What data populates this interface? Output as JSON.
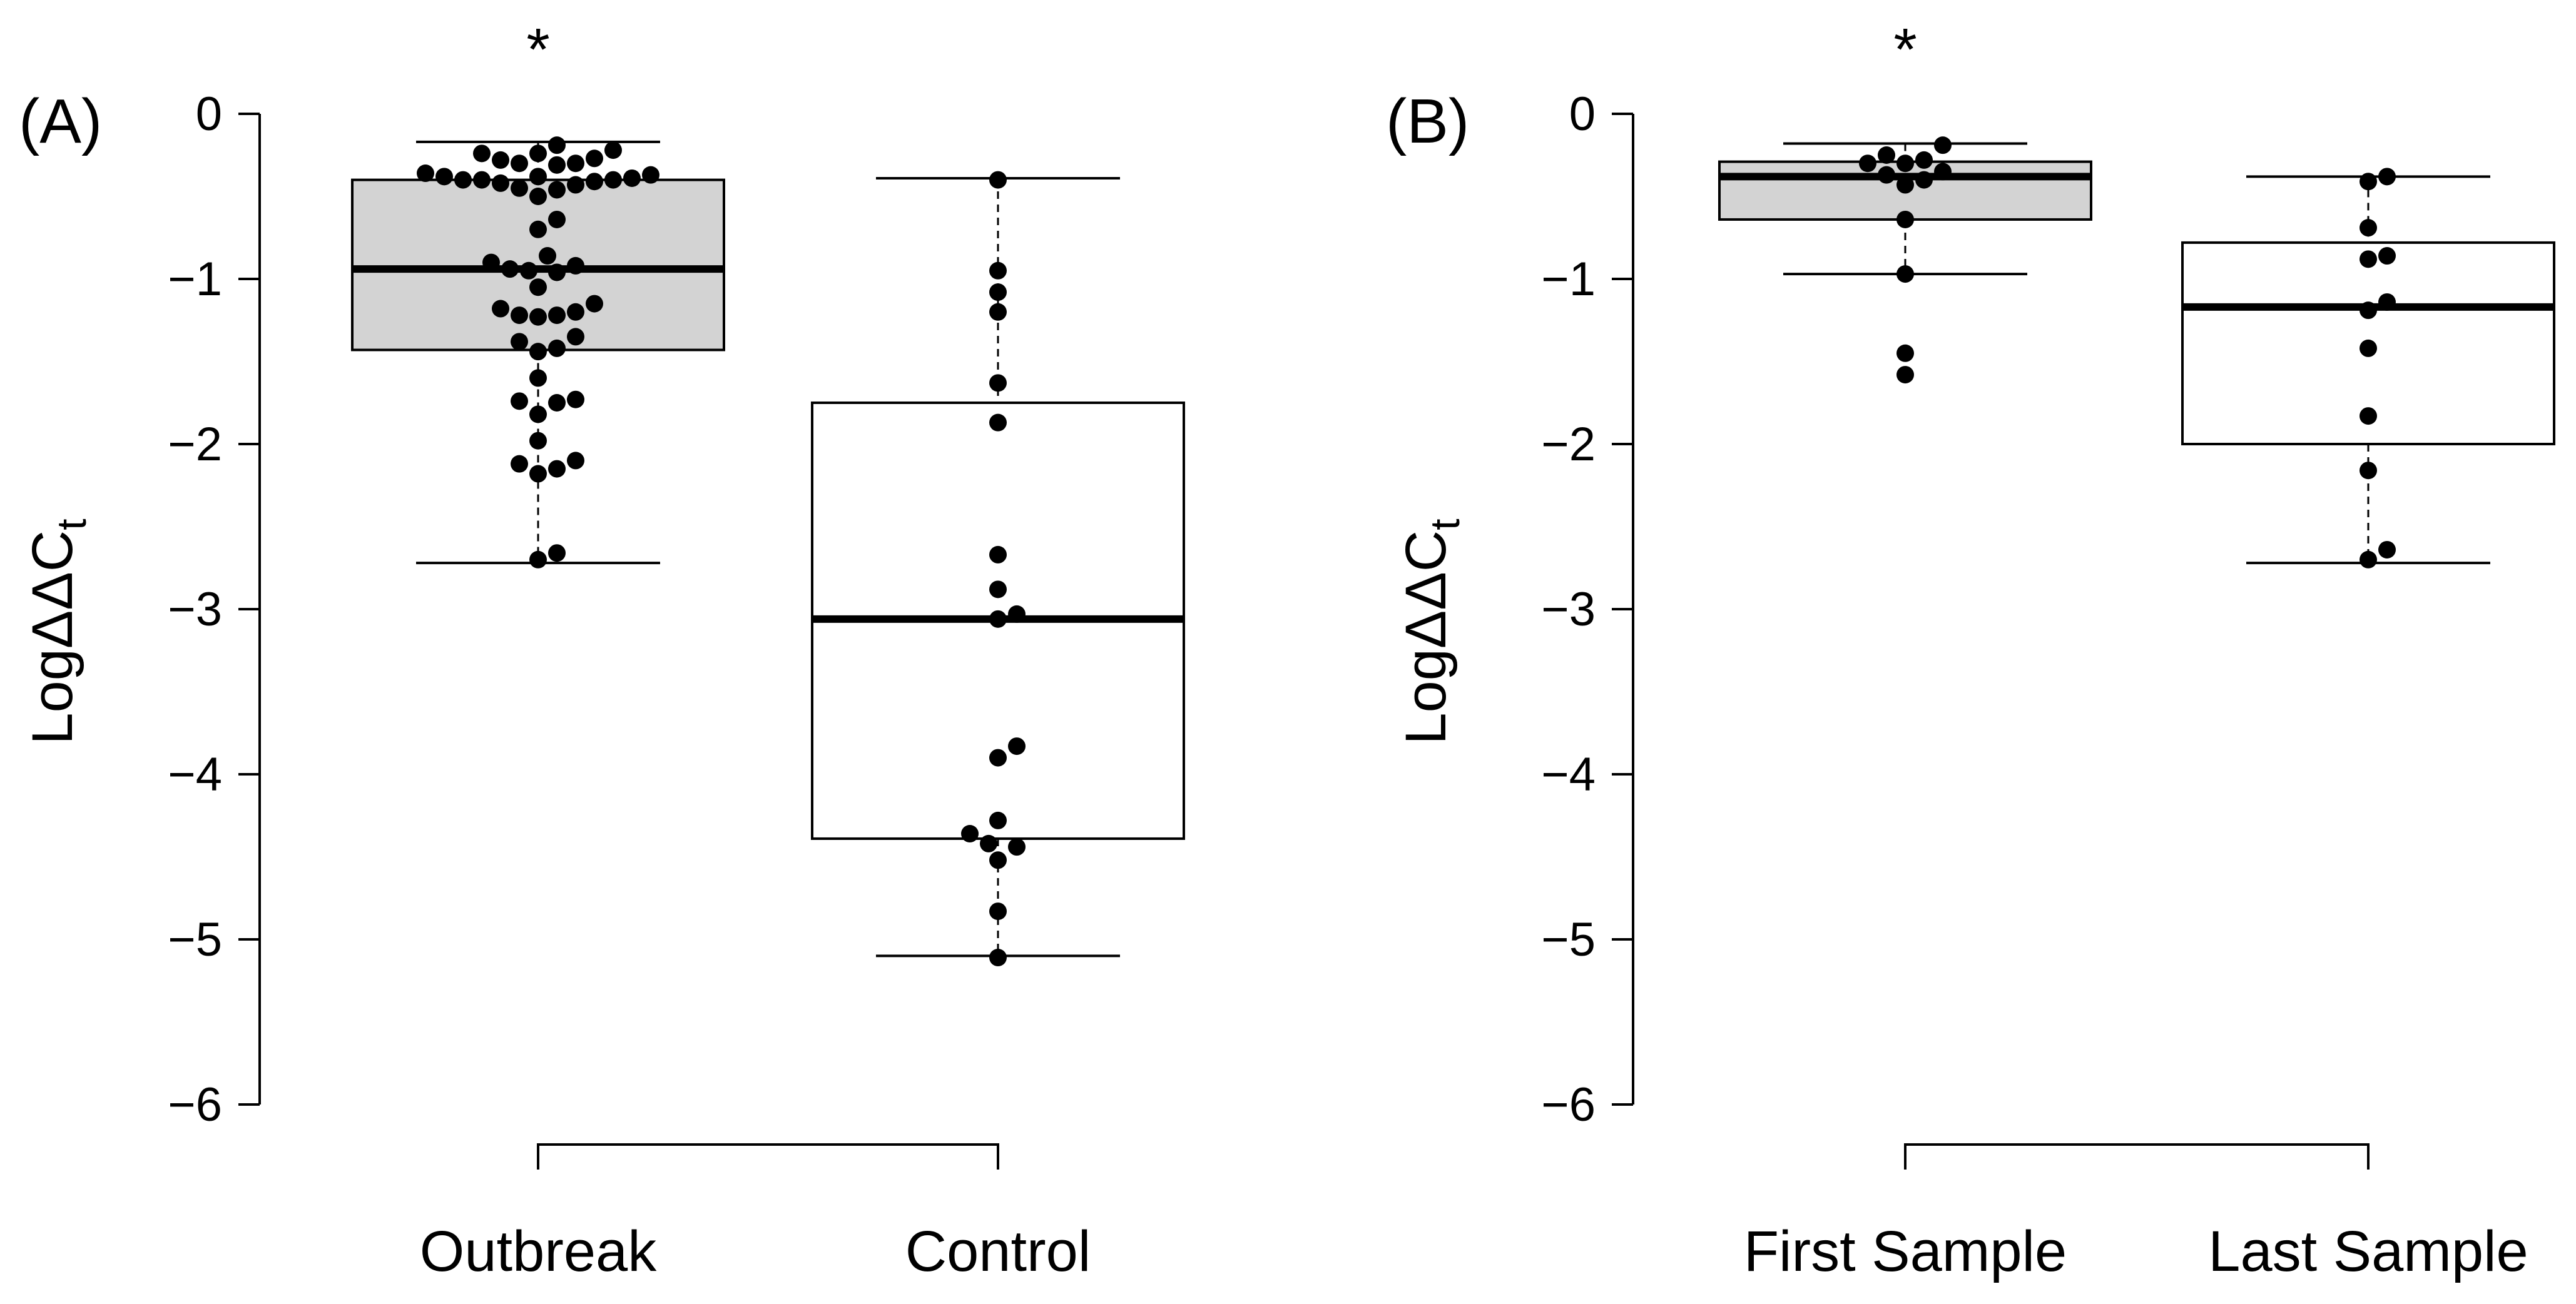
{
  "chart_data": [
    {
      "type": "box",
      "panel_label": "(A)",
      "ylabel": "LogΔΔCt",
      "ylabel_main": "LogΔΔC",
      "ylabel_sub": "t",
      "ylim": [
        -6,
        0
      ],
      "yticks": [
        0,
        -1,
        -2,
        -3,
        -4,
        -5,
        -6
      ],
      "ytick_labels": [
        "0",
        "−1",
        "−2",
        "−3",
        "−4",
        "−5",
        "−6"
      ],
      "categories": [
        "Outbreak",
        "Control"
      ],
      "significance": [
        "*",
        ""
      ],
      "box_colors": [
        "#d3d3d3",
        "#ffffff"
      ],
      "boxes": [
        {
          "category": "Outbreak",
          "whisker_high": -0.17,
          "q3": -0.4,
          "median": -0.94,
          "q1": -1.43,
          "whisker_low": -2.72
        },
        {
          "category": "Control",
          "whisker_high": -0.39,
          "q3": -1.75,
          "median": -3.06,
          "q1": -4.39,
          "whisker_low": -5.1
        }
      ],
      "points": [
        [
          -0.19,
          -0.22,
          -0.24,
          -0.24,
          -0.27,
          -0.28,
          -0.3,
          -0.3,
          -0.31,
          -0.36,
          -0.37,
          -0.38,
          -0.38,
          -0.39,
          -0.4,
          -0.4,
          -0.4,
          -0.41,
          -0.42,
          -0.43,
          -0.45,
          -0.46,
          -0.5,
          -0.64,
          -0.7,
          -0.86,
          -0.9,
          -0.92,
          -0.94,
          -0.95,
          -0.96,
          -1.05,
          -1.15,
          -1.18,
          -1.2,
          -1.22,
          -1.22,
          -1.23,
          -1.35,
          -1.38,
          -1.42,
          -1.44,
          -1.6,
          -1.73,
          -1.74,
          -1.75,
          -1.82,
          -1.98,
          -2.1,
          -2.12,
          -2.15,
          -2.18,
          -2.66,
          -2.7
        ],
        [
          -0.4,
          -0.95,
          -1.08,
          -1.2,
          -1.63,
          -1.87,
          -2.67,
          -2.88,
          -3.03,
          -3.06,
          -3.83,
          -3.9,
          -4.28,
          -4.36,
          -4.42,
          -4.44,
          -4.52,
          -4.83,
          -5.11
        ]
      ]
    },
    {
      "type": "box",
      "panel_label": "(B)",
      "ylabel": "LogΔΔCt",
      "ylabel_main": "LogΔΔC",
      "ylabel_sub": "t",
      "ylim": [
        -6,
        0
      ],
      "yticks": [
        0,
        -1,
        -2,
        -3,
        -4,
        -5,
        -6
      ],
      "ytick_labels": [
        "0",
        "−1",
        "−2",
        "−3",
        "−4",
        "−5",
        "−6"
      ],
      "categories": [
        "First Sample",
        "Last Sample"
      ],
      "significance": [
        "*",
        ""
      ],
      "box_colors": [
        "#d3d3d3",
        "#ffffff"
      ],
      "boxes": [
        {
          "category": "First Sample",
          "whisker_high": -0.18,
          "q3": -0.29,
          "median": -0.38,
          "q1": -0.64,
          "whisker_low": -0.97
        },
        {
          "category": "Last Sample",
          "whisker_high": -0.38,
          "q3": -0.78,
          "median": -1.17,
          "q1": -2.0,
          "whisker_low": -2.72
        }
      ],
      "points": [
        [
          -0.19,
          -0.25,
          -0.28,
          -0.3,
          -0.3,
          -0.35,
          -0.37,
          -0.4,
          -0.43,
          -0.64,
          -0.97,
          -1.45,
          -1.58
        ],
        [
          -0.38,
          -0.41,
          -0.69,
          -0.86,
          -0.88,
          -1.14,
          -1.19,
          -1.42,
          -1.83,
          -2.16,
          -2.64,
          -2.7
        ]
      ]
    }
  ]
}
